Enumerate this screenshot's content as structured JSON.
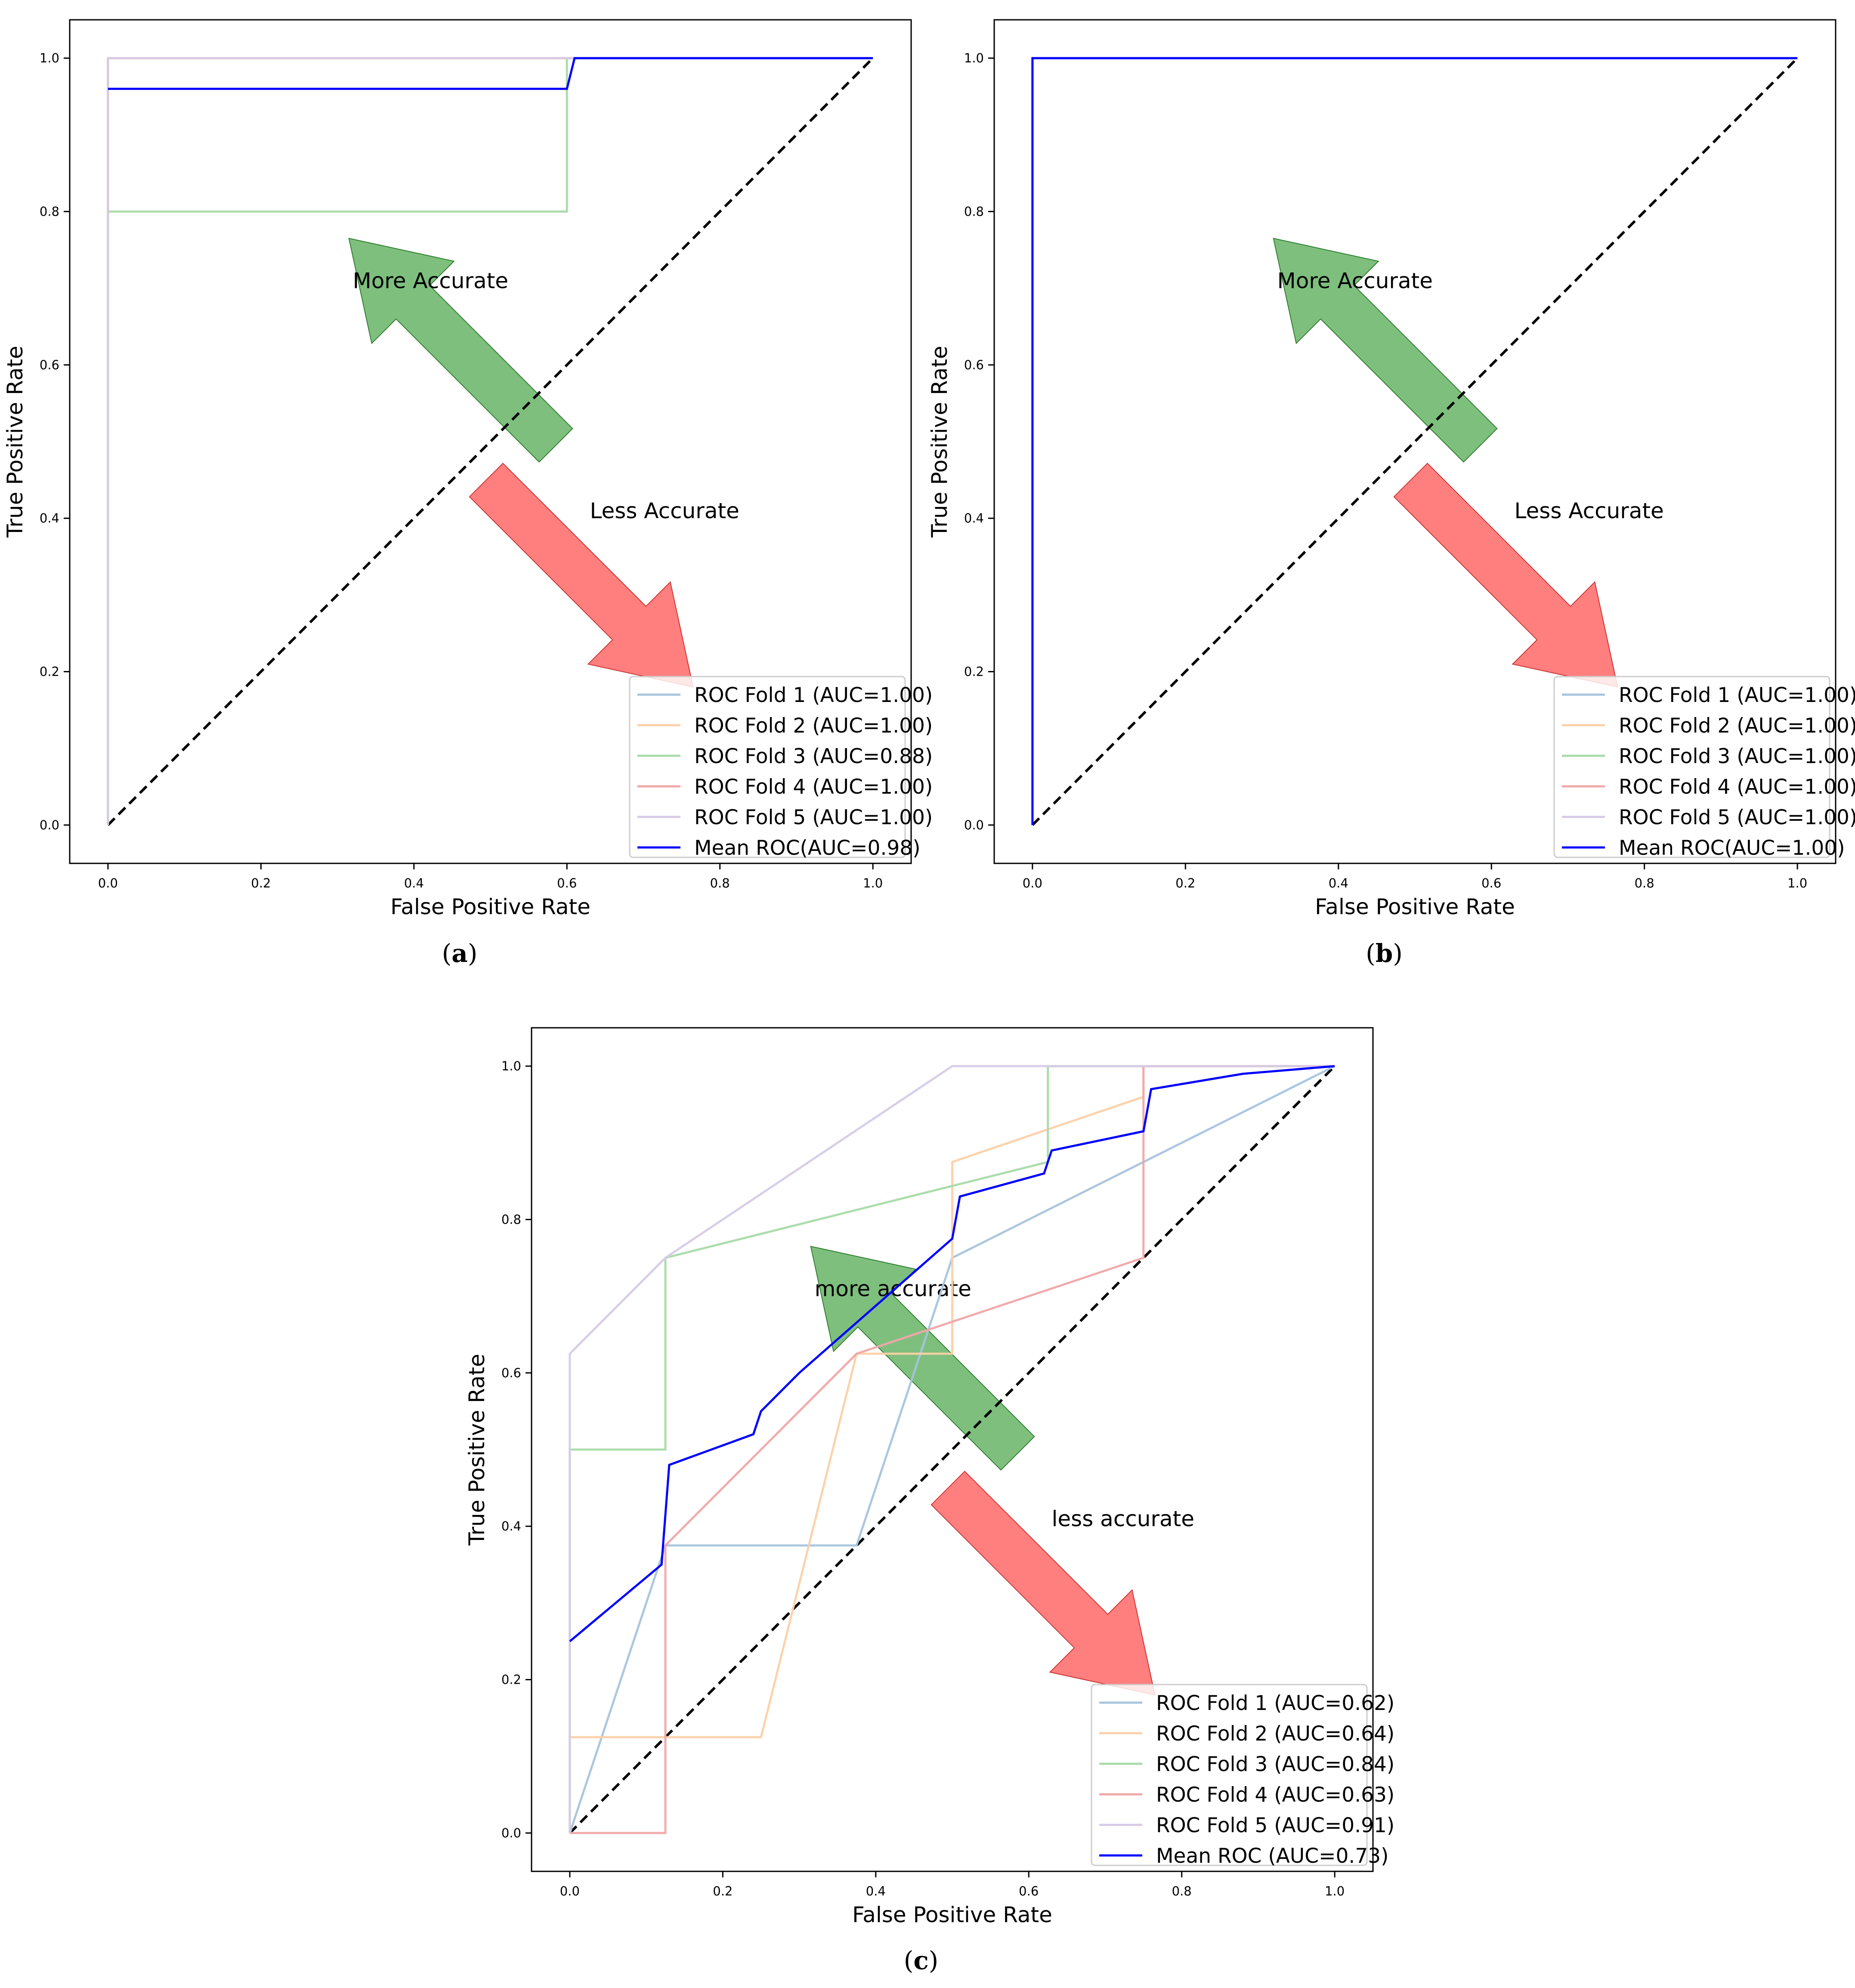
{
  "colors": {
    "fold1": "#a6c4dc",
    "fold2": "#fcd0a8",
    "fold3": "#a9daa9",
    "fold4": "#f0a7a8",
    "fold5": "#d6cbe6",
    "mean": "#0000ff",
    "diagonal": "#000000",
    "arrow_more": "#4ca64c",
    "arrow_less": "#ff4c4c"
  },
  "chart_data": [
    {
      "id": "a",
      "type": "line",
      "caption": {
        "open": "(",
        "letter": "a",
        "close": ")"
      },
      "title": "",
      "xlabel": "False Positive Rate",
      "ylabel": "True Positive Rate",
      "xlim": [
        -0.05,
        1.05
      ],
      "ylim": [
        -0.05,
        1.05
      ],
      "xticks": [
        "0.0",
        "0.2",
        "0.4",
        "0.6",
        "0.8",
        "1.0"
      ],
      "yticks": [
        "0.0",
        "0.2",
        "0.4",
        "0.6",
        "0.8",
        "1.0"
      ],
      "grid": false,
      "legend_position": "lower right",
      "annotations": [
        {
          "text": "More Accurate",
          "kind": "more"
        },
        {
          "text": "Less Accurate",
          "kind": "less"
        }
      ],
      "series": [
        {
          "name": "ROC Fold 1 (AUC=1.00)",
          "color_key": "fold1",
          "x": [
            0,
            0,
            1
          ],
          "y": [
            0,
            1,
            1
          ]
        },
        {
          "name": "ROC Fold 2 (AUC=1.00)",
          "color_key": "fold2",
          "x": [
            0,
            0,
            1
          ],
          "y": [
            0,
            1,
            1
          ]
        },
        {
          "name": "ROC Fold 3 (AUC=0.88)",
          "color_key": "fold3",
          "x": [
            0,
            0,
            0.6,
            0.6,
            1
          ],
          "y": [
            0,
            0.8,
            0.8,
            1,
            1
          ]
        },
        {
          "name": "ROC Fold 4 (AUC=1.00)",
          "color_key": "fold4",
          "x": [
            0,
            0,
            1
          ],
          "y": [
            0,
            1,
            1
          ]
        },
        {
          "name": "ROC Fold 5 (AUC=1.00)",
          "color_key": "fold5",
          "x": [
            0,
            0,
            1
          ],
          "y": [
            0,
            1,
            1
          ]
        },
        {
          "name": "Mean ROC(AUC=0.98)",
          "color_key": "mean",
          "x": [
            0,
            0.6,
            0.61,
            1
          ],
          "y": [
            0.96,
            0.96,
            1,
            1
          ]
        }
      ]
    },
    {
      "id": "b",
      "type": "line",
      "caption": {
        "open": "(",
        "letter": "b",
        "close": ")"
      },
      "title": "",
      "xlabel": "False Positive Rate",
      "ylabel": "True Positive Rate",
      "xlim": [
        -0.05,
        1.05
      ],
      "ylim": [
        -0.05,
        1.05
      ],
      "xticks": [
        "0.0",
        "0.2",
        "0.4",
        "0.6",
        "0.8",
        "1.0"
      ],
      "yticks": [
        "0.0",
        "0.2",
        "0.4",
        "0.6",
        "0.8",
        "1.0"
      ],
      "grid": false,
      "legend_position": "lower right",
      "annotations": [
        {
          "text": "More Accurate",
          "kind": "more"
        },
        {
          "text": "Less Accurate",
          "kind": "less"
        }
      ],
      "series": [
        {
          "name": "ROC Fold 1 (AUC=1.00)",
          "color_key": "fold1",
          "x": [
            0,
            0,
            1
          ],
          "y": [
            0,
            1,
            1
          ]
        },
        {
          "name": "ROC Fold 2 (AUC=1.00)",
          "color_key": "fold2",
          "x": [
            0,
            0,
            1
          ],
          "y": [
            0,
            1,
            1
          ]
        },
        {
          "name": "ROC Fold 3 (AUC=1.00)",
          "color_key": "fold3",
          "x": [
            0,
            0,
            1
          ],
          "y": [
            0,
            1,
            1
          ]
        },
        {
          "name": "ROC Fold 4 (AUC=1.00)",
          "color_key": "fold4",
          "x": [
            0,
            0,
            1
          ],
          "y": [
            0,
            1,
            1
          ]
        },
        {
          "name": "ROC Fold 5 (AUC=1.00)",
          "color_key": "fold5",
          "x": [
            0,
            0,
            1
          ],
          "y": [
            0,
            1,
            1
          ]
        },
        {
          "name": "Mean ROC(AUC=1.00)",
          "color_key": "mean",
          "x": [
            0,
            0,
            1
          ],
          "y": [
            0,
            1,
            1
          ]
        }
      ]
    },
    {
      "id": "c",
      "type": "line",
      "caption": {
        "open": "(",
        "letter": "c",
        "close": ")"
      },
      "title": "",
      "xlabel": "False Positive Rate",
      "ylabel": "True Positive Rate",
      "xlim": [
        -0.05,
        1.05
      ],
      "ylim": [
        -0.05,
        1.05
      ],
      "xticks": [
        "0.0",
        "0.2",
        "0.4",
        "0.6",
        "0.8",
        "1.0"
      ],
      "yticks": [
        "0.0",
        "0.2",
        "0.4",
        "0.6",
        "0.8",
        "1.0"
      ],
      "grid": false,
      "legend_position": "lower right",
      "annotations": [
        {
          "text": "more accurate",
          "kind": "more"
        },
        {
          "text": "less accurate",
          "kind": "less"
        }
      ],
      "series": [
        {
          "name": "ROC Fold 1 (AUC=0.62)",
          "color_key": "fold1",
          "x": [
            0,
            0.125,
            0.375,
            0.5,
            1
          ],
          "y": [
            0,
            0.375,
            0.375,
            0.75,
            1
          ]
        },
        {
          "name": "ROC Fold 2 (AUC=0.64)",
          "color_key": "fold2",
          "x": [
            0,
            0,
            0.25,
            0.375,
            0.5,
            0.5,
            0.75,
            0.75,
            1
          ],
          "y": [
            0,
            0.125,
            0.125,
            0.625,
            0.625,
            0.875,
            0.96,
            1,
            1
          ]
        },
        {
          "name": "ROC Fold 3 (AUC=0.84)",
          "color_key": "fold3",
          "x": [
            0,
            0,
            0.125,
            0.125,
            0.625,
            0.625,
            1
          ],
          "y": [
            0,
            0.5,
            0.5,
            0.75,
            0.875,
            1,
            1
          ]
        },
        {
          "name": "ROC Fold 4 (AUC=0.63)",
          "color_key": "fold4",
          "x": [
            0,
            0.125,
            0.125,
            0.375,
            0.75,
            0.75,
            1
          ],
          "y": [
            0,
            0,
            0.375,
            0.625,
            0.75,
            1,
            1
          ]
        },
        {
          "name": "ROC Fold 5 (AUC=0.91)",
          "color_key": "fold5",
          "x": [
            0,
            0,
            0.125,
            0.5,
            1
          ],
          "y": [
            0,
            0.625,
            0.75,
            1,
            1
          ]
        },
        {
          "name": "Mean ROC (AUC=0.73)",
          "color_key": "mean",
          "x": [
            0,
            0.12,
            0.13,
            0.24,
            0.25,
            0.3,
            0.38,
            0.5,
            0.51,
            0.62,
            0.63,
            0.75,
            0.76,
            0.88,
            1.0
          ],
          "y": [
            0.25,
            0.35,
            0.48,
            0.52,
            0.55,
            0.6,
            0.67,
            0.775,
            0.83,
            0.86,
            0.89,
            0.915,
            0.97,
            0.99,
            1.0
          ]
        }
      ]
    }
  ]
}
